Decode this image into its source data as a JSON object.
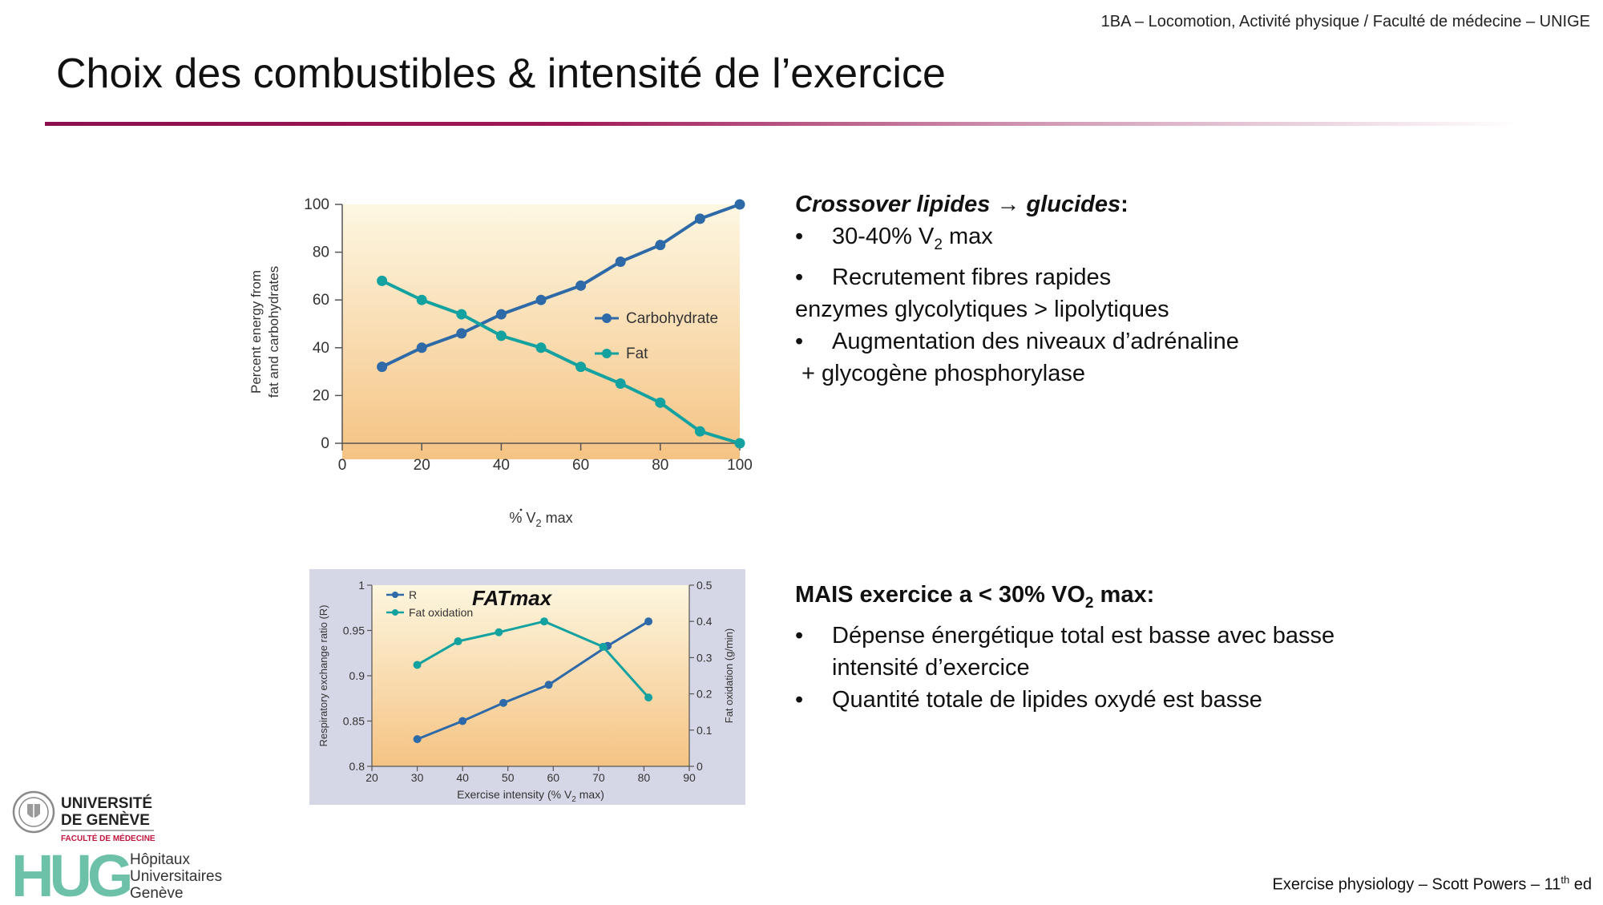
{
  "header": {
    "note": "1BA – Locomotion, Activité physique / Faculté de médecine – UNIGE"
  },
  "title": "Choix des combustibles & intensité de l’exercice",
  "block1": {
    "heading_a": "Crossover lipides ",
    "heading_arrow": "→",
    "heading_b": " glucides",
    "heading_colon": ":",
    "items": [
      {
        "pre": "30-40% V",
        "dot_letter": "V",
        "sub": "2",
        "post": " max"
      },
      {
        "text": "Recrutement fibres rapides"
      }
    ],
    "cont1": "enzymes glycolytiques > lipolytiques",
    "item3": "Augmentation des niveaux d’adrénaline",
    "cont2": " + glycogène phosphorylase"
  },
  "block2": {
    "heading_pre": "MAIS exercice a < 30% VO",
    "heading_sub": "2",
    "heading_post": " max:",
    "items": [
      {
        "line1": "Dépense énergétique total est basse avec basse",
        "line2": "intensité d’exercice"
      },
      {
        "line1": "Quantité totale de lipides oxydé est basse"
      }
    ]
  },
  "footer": {
    "pre": "Exercise physiology – Scott Powers – 11",
    "sup": "th",
    "post": " ed"
  },
  "logos": {
    "unige_line1": "UNIVERSITÉ",
    "unige_line2": "DE GENÈVE",
    "unige_line3": "FACULTÉ DE MÉDECINE",
    "hug_letters": "HUG",
    "hug_line1": "Hôpitaux",
    "hug_line2": "Universitaires",
    "hug_line3": "Genève"
  },
  "colors": {
    "carb": "#2e6aa8",
    "fat": "#14a2a0",
    "accent": "#8c0f4d"
  },
  "chart_data": [
    {
      "type": "line",
      "title": "",
      "xlabel_pre": "% V",
      "xlabel_sub": "2",
      "xlabel_post": " max",
      "ylabel_line1": "Percent energy from",
      "ylabel_line2": "fat and carbohydrates",
      "xlim": [
        0,
        100
      ],
      "ylim": [
        0,
        100
      ],
      "xticks": [
        0,
        20,
        40,
        60,
        80,
        100
      ],
      "yticks": [
        0,
        20,
        40,
        60,
        80,
        100
      ],
      "legend_position": "center-right",
      "series": [
        {
          "name": "Carbohydrate",
          "x": [
            10,
            20,
            30,
            40,
            50,
            60,
            70,
            80,
            90,
            100
          ],
          "y": [
            32,
            40,
            46,
            54,
            60,
            66,
            76,
            83,
            94,
            100
          ]
        },
        {
          "name": "Fat",
          "x": [
            10,
            20,
            30,
            40,
            50,
            60,
            70,
            80,
            90,
            100
          ],
          "y": [
            68,
            60,
            54,
            45,
            40,
            32,
            25,
            17,
            5,
            0
          ]
        }
      ]
    },
    {
      "type": "line",
      "annotation": "FATmax",
      "xlabel_pre": "Exercise intensity (% V",
      "xlabel_sub": "2",
      "xlabel_post": " max)",
      "ylabel_left": "Respiratory exchange ratio (R)",
      "ylabel_right": "Fat oxidation (g/min)",
      "xlim": [
        20,
        90
      ],
      "ylim_left": [
        0.8,
        1
      ],
      "ylim_right": [
        0,
        0.5
      ],
      "xticks": [
        20,
        30,
        40,
        50,
        60,
        70,
        80,
        90
      ],
      "yticks_left": [
        0.8,
        0.85,
        0.9,
        0.95,
        1
      ],
      "yticks_left_labels": [
        "0.8",
        "0.85",
        "0.9",
        "0.95",
        "1"
      ],
      "yticks_right": [
        0,
        0.1,
        0.2,
        0.3,
        0.4,
        0.5
      ],
      "yticks_right_labels": [
        "0",
        "0.1",
        "0.2",
        "0.3",
        "0.4",
        "0.5"
      ],
      "legend_position": "top-left",
      "series": [
        {
          "name": "R",
          "axis": "left",
          "x": [
            30,
            40,
            49,
            59,
            72,
            81
          ],
          "y": [
            0.83,
            0.85,
            0.87,
            0.89,
            0.933,
            0.96
          ]
        },
        {
          "name": "Fat oxidation",
          "axis": "right",
          "x": [
            30,
            39,
            48,
            58,
            71,
            81
          ],
          "y": [
            0.28,
            0.345,
            0.37,
            0.4,
            0.33,
            0.19
          ]
        }
      ]
    }
  ]
}
